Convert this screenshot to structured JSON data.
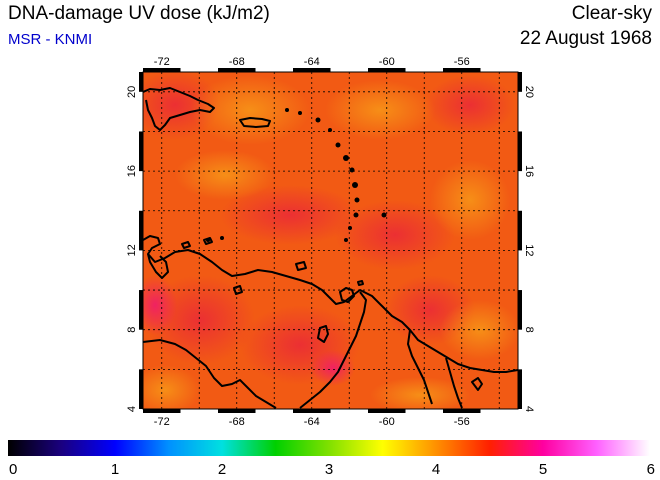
{
  "header": {
    "title": "DNA-damage UV dose (kJ/m2)",
    "source": "MSR - KNMI",
    "mode": "Clear-sky",
    "date": "22 August 1968"
  },
  "colors": {
    "source_text": "#0000cc",
    "field_base": "#f25a14",
    "field_hot": "#ea2838",
    "field_warm": "#f58a14",
    "coast": "#000000",
    "grid": "#000000"
  },
  "map": {
    "lon_range": [
      -73,
      -53
    ],
    "lat_range": [
      4,
      21
    ],
    "lon_ticks": [
      "-72",
      "-68",
      "-64",
      "-60",
      "-56"
    ],
    "lat_ticks": [
      "4",
      "8",
      "12",
      "16",
      "20"
    ]
  },
  "colorbar": {
    "range": [
      0,
      6
    ],
    "labels": [
      "0",
      "1",
      "2",
      "3",
      "4",
      "5",
      "6"
    ],
    "stops": [
      "#000000",
      "#1a0080",
      "#0000ff",
      "#0090ff",
      "#00e0e0",
      "#00d000",
      "#80e000",
      "#ffff00",
      "#ff9000",
      "#ff2000",
      "#ff00a0",
      "#ff60ff",
      "#ffffff"
    ]
  }
}
